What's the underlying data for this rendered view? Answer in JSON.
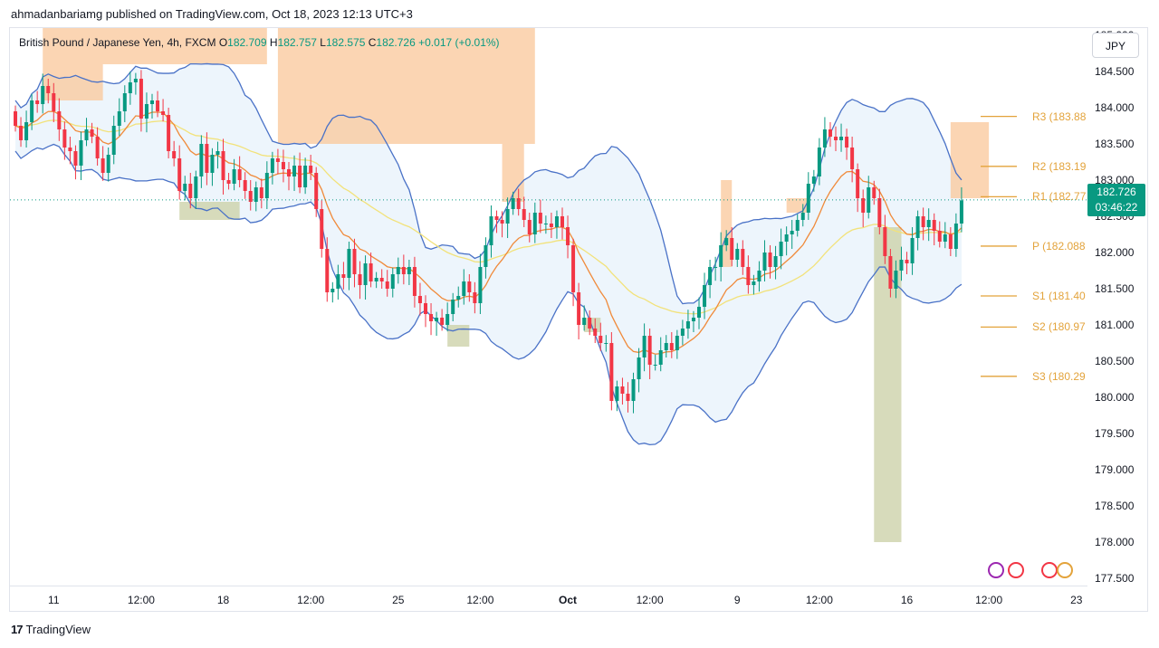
{
  "header": {
    "publisher_line": "ahmadanbariamg published on TradingView.com, Oct 18, 2023 12:13 UTC+3"
  },
  "legend": {
    "symbol": "British Pound / Japanese Yen, 4h, FXCM",
    "o_label": "O",
    "o_value": "182.709",
    "h_label": "H",
    "h_value": "182.757",
    "l_label": "L",
    "l_value": "182.575",
    "c_label": "C",
    "c_value": "182.726",
    "change": "+0.017",
    "change_pct": "(+0.01%)"
  },
  "currency": "JPY",
  "last_price": {
    "value": "182.726",
    "countdown": "03:46:22"
  },
  "footer": {
    "brand": "TradingView",
    "mark": "17"
  },
  "colors": {
    "up": "#089981",
    "down": "#f23645",
    "bollinger": "#4a72c7",
    "ema_fast": "#f08a3a",
    "ema_slow": "#f2e27a",
    "pivot": "#e3a33b",
    "supply_zone": "#f9c79a",
    "demand_zone": "#c9cfa4",
    "bb_fill": "#e9f2fb"
  },
  "chart_data": {
    "type": "candlestick",
    "title": "British Pound / Japanese Yen, 4h, FXCM",
    "ylim": [
      177.4,
      185.1
    ],
    "y_ticks": [
      "185.000",
      "184.500",
      "184.000",
      "183.500",
      "183.000",
      "182.500",
      "182.000",
      "181.500",
      "181.000",
      "180.500",
      "180.000",
      "179.500",
      "179.000",
      "178.500",
      "178.000",
      "177.500"
    ],
    "x_ticks": [
      {
        "label": "11",
        "bar": 7,
        "bold": false
      },
      {
        "label": "12:00",
        "bar": 23,
        "bold": false
      },
      {
        "label": "18",
        "bar": 38,
        "bold": false
      },
      {
        "label": "12:00",
        "bar": 54,
        "bold": false
      },
      {
        "label": "25",
        "bar": 70,
        "bold": false
      },
      {
        "label": "12:00",
        "bar": 85,
        "bold": false
      },
      {
        "label": "Oct",
        "bar": 101,
        "bold": true
      },
      {
        "label": "12:00",
        "bar": 116,
        "bold": false
      },
      {
        "label": "9",
        "bar": 132,
        "bold": false
      },
      {
        "label": "12:00",
        "bar": 147,
        "bold": false
      },
      {
        "label": "16",
        "bar": 163,
        "bold": false
      },
      {
        "label": "12:00",
        "bar": 178,
        "bold": false
      },
      {
        "label": "23",
        "bar": 194,
        "bold": false
      }
    ],
    "closes": [
      183.75,
      183.55,
      183.8,
      184.1,
      184.05,
      184.3,
      184.2,
      183.95,
      183.7,
      183.45,
      183.4,
      183.2,
      183.55,
      183.7,
      183.6,
      183.3,
      183.1,
      183.35,
      183.75,
      183.95,
      184.2,
      184.35,
      184.4,
      183.85,
      184.05,
      184.1,
      183.95,
      183.9,
      183.4,
      183.3,
      182.85,
      182.95,
      182.75,
      183.05,
      183.5,
      183.1,
      183.35,
      183.4,
      183.0,
      182.95,
      183.15,
      183.0,
      182.85,
      182.7,
      182.9,
      182.75,
      183.1,
      183.3,
      183.25,
      183.15,
      183.05,
      183.2,
      182.9,
      183.2,
      183.1,
      182.6,
      182.05,
      181.45,
      181.5,
      181.7,
      181.65,
      182.05,
      181.7,
      181.55,
      181.85,
      181.6,
      181.65,
      181.6,
      181.5,
      181.7,
      181.8,
      181.7,
      181.8,
      181.4,
      181.3,
      181.15,
      181.05,
      181.1,
      181.0,
      181.15,
      181.35,
      181.4,
      181.6,
      181.45,
      181.3,
      181.8,
      182.1,
      182.5,
      182.45,
      182.4,
      182.6,
      182.75,
      182.6,
      182.45,
      182.25,
      182.55,
      182.4,
      182.4,
      182.35,
      182.5,
      182.35,
      182.1,
      181.45,
      181.0,
      181.1,
      180.95,
      180.85,
      180.75,
      180.75,
      179.95,
      180.15,
      180.05,
      179.95,
      180.25,
      180.55,
      180.85,
      180.45,
      180.45,
      180.65,
      180.75,
      180.65,
      180.85,
      180.95,
      181.05,
      181.1,
      181.25,
      181.55,
      181.8,
      181.8,
      182.1,
      182.2,
      181.9,
      182.05,
      181.8,
      181.55,
      181.6,
      181.75,
      182.0,
      181.8,
      181.95,
      182.15,
      182.25,
      182.3,
      182.45,
      182.55,
      182.95,
      183.05,
      183.45,
      183.7,
      183.6,
      183.55,
      183.6,
      183.45,
      183.15,
      182.75,
      182.55,
      182.9,
      182.75,
      182.35,
      181.95,
      181.5,
      181.75,
      181.9,
      181.85,
      182.2,
      182.5,
      182.35,
      182.45,
      182.3,
      182.15,
      182.25,
      182.05,
      182.4,
      182.72
    ]
  },
  "pivots": [
    {
      "label": "R3 (183.88",
      "value": 183.88
    },
    {
      "label": "R2 (183.19",
      "value": 183.19
    },
    {
      "label": "R1 (182.77",
      "value": 182.77
    },
    {
      "label": "P (182.088",
      "value": 182.088
    },
    {
      "label": "S1 (181.40",
      "value": 181.4
    },
    {
      "label": "S2 (180.97",
      "value": 180.97
    },
    {
      "label": "S3 (180.29",
      "value": 180.29
    }
  ]
}
